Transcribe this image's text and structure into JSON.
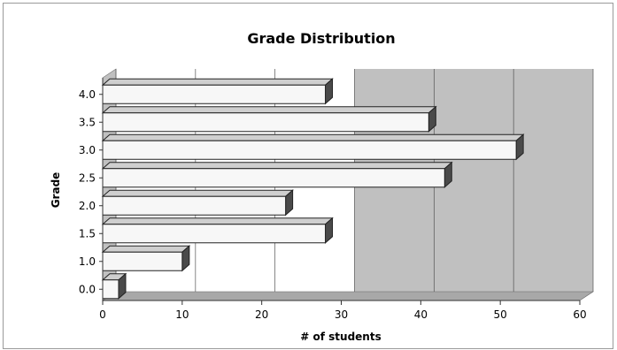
{
  "chart_data": {
    "type": "bar",
    "orientation": "horizontal",
    "title": "Grade Distribution",
    "xlabel": "# of students",
    "ylabel": "Grade",
    "categories": [
      "0.0",
      "1.0",
      "1.5",
      "2.0",
      "2.5",
      "3.0",
      "3.5",
      "4.0"
    ],
    "values": [
      2,
      10,
      28,
      23,
      43,
      52,
      41,
      28
    ],
    "xlim": [
      0,
      60
    ],
    "xticks": [
      0,
      10,
      20,
      30,
      40,
      50,
      60
    ],
    "grid": true,
    "style": "3d",
    "colors": {
      "bar_face": "#f7f7f7",
      "bar_top": "#cfcfcf",
      "bar_side": "#4a4a4a",
      "wall_light": "#ffffff",
      "wall_dark": "#c0c0c0",
      "floor": "#a8a8a8"
    }
  }
}
